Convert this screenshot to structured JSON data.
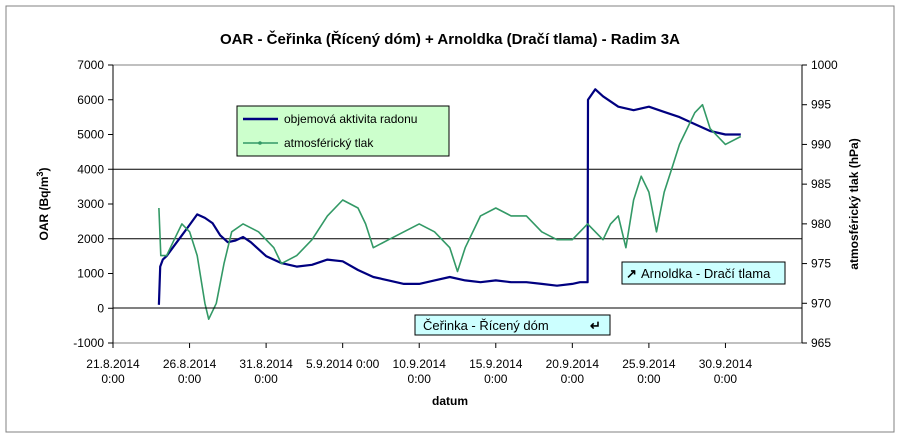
{
  "chart_data": {
    "type": "line",
    "title": "OAR - Čeřinka (Řícený dóm) + Arnoldka (Dračí tlama) - Radim 3A",
    "xlabel": "datum",
    "ylabel_left": "OAR (Bq/m",
    "ylabel_left_sup": "3",
    "ylabel_left_end": ")",
    "ylabel_right": "atmosférický tlak (hPa)",
    "ylim_left": [
      -1000,
      7000
    ],
    "ylim_right": [
      965,
      1000
    ],
    "yticks_left": [
      "-1000",
      "0",
      "1000",
      "2000",
      "3000",
      "4000",
      "5000",
      "6000",
      "7000"
    ],
    "yticks_right": [
      "965",
      "970",
      "975",
      "980",
      "985",
      "990",
      "995",
      "1000"
    ],
    "xlim": [
      "2014-08-21",
      "2014-10-05"
    ],
    "xticks": [
      {
        "date": "2014-08-21",
        "line1": "21.8.2014",
        "line2": "0:00"
      },
      {
        "date": "2014-08-26",
        "line1": "26.8.2014",
        "line2": "0:00"
      },
      {
        "date": "2014-08-31",
        "line1": "31.8.2014",
        "line2": "0:00"
      },
      {
        "date": "2014-09-05",
        "line1": "5.9.2014 0:00",
        "line2": ""
      },
      {
        "date": "2014-09-10",
        "line1": "10.9.2014",
        "line2": "0:00"
      },
      {
        "date": "2014-09-15",
        "line1": "15.9.2014",
        "line2": "0:00"
      },
      {
        "date": "2014-09-20",
        "line1": "20.9.2014",
        "line2": "0:00"
      },
      {
        "date": "2014-09-25",
        "line1": "25.9.2014",
        "line2": "0:00"
      },
      {
        "date": "2014-09-30",
        "line1": "30.9.2014",
        "line2": "0:00"
      }
    ],
    "gridlines_left": [
      2000,
      4000
    ],
    "legend_position": "upper-left",
    "series": [
      {
        "name": "objemová aktivita radonu",
        "color": "#000080",
        "axis": "left",
        "points": [
          [
            "2014-08-24T00:00",
            100
          ],
          [
            "2014-08-24T02:00",
            1200
          ],
          [
            "2014-08-24T06:00",
            1400
          ],
          [
            "2014-08-24T12:00",
            1500
          ],
          [
            "2014-08-25T00:00",
            1800
          ],
          [
            "2014-08-25T12:00",
            2100
          ],
          [
            "2014-08-26T00:00",
            2400
          ],
          [
            "2014-08-26T12:00",
            2700
          ],
          [
            "2014-08-27T00:00",
            2600
          ],
          [
            "2014-08-27T12:00",
            2450
          ],
          [
            "2014-08-28T00:00",
            2100
          ],
          [
            "2014-08-28T12:00",
            1900
          ],
          [
            "2014-08-29T00:00",
            1950
          ],
          [
            "2014-08-29T12:00",
            2050
          ],
          [
            "2014-08-30T00:00",
            1900
          ],
          [
            "2014-08-30T12:00",
            1700
          ],
          [
            "2014-08-31T00:00",
            1500
          ],
          [
            "2014-09-01T00:00",
            1300
          ],
          [
            "2014-09-02T00:00",
            1200
          ],
          [
            "2014-09-03T00:00",
            1250
          ],
          [
            "2014-09-04T00:00",
            1400
          ],
          [
            "2014-09-05T00:00",
            1350
          ],
          [
            "2014-09-06T00:00",
            1100
          ],
          [
            "2014-09-07T00:00",
            900
          ],
          [
            "2014-09-08T00:00",
            800
          ],
          [
            "2014-09-09T00:00",
            700
          ],
          [
            "2014-09-10T00:00",
            700
          ],
          [
            "2014-09-11T00:00",
            800
          ],
          [
            "2014-09-12T00:00",
            900
          ],
          [
            "2014-09-13T00:00",
            800
          ],
          [
            "2014-09-14T00:00",
            750
          ],
          [
            "2014-09-15T00:00",
            800
          ],
          [
            "2014-09-16T00:00",
            750
          ],
          [
            "2014-09-17T00:00",
            750
          ],
          [
            "2014-09-18T00:00",
            700
          ],
          [
            "2014-09-19T00:00",
            650
          ],
          [
            "2014-09-20T00:00",
            700
          ],
          [
            "2014-09-20T12:00",
            750
          ],
          [
            "2014-09-21T00:00",
            750
          ],
          [
            "2014-09-21T00:30",
            6000
          ],
          [
            "2014-09-21T12:00",
            6300
          ],
          [
            "2014-09-22T00:00",
            6100
          ],
          [
            "2014-09-23T00:00",
            5800
          ],
          [
            "2014-09-24T00:00",
            5700
          ],
          [
            "2014-09-25T00:00",
            5800
          ],
          [
            "2014-09-26T00:00",
            5650
          ],
          [
            "2014-09-27T00:00",
            5500
          ],
          [
            "2014-09-28T00:00",
            5300
          ],
          [
            "2014-09-29T00:00",
            5100
          ],
          [
            "2014-09-30T00:00",
            5000
          ],
          [
            "2014-10-01T00:00",
            5000
          ]
        ]
      },
      {
        "name": "atmosférický tlak",
        "color": "#339966",
        "axis": "right",
        "points": [
          [
            "2014-08-24T00:00",
            982
          ],
          [
            "2014-08-24T03:00",
            976
          ],
          [
            "2014-08-24T12:00",
            976
          ],
          [
            "2014-08-25T00:00",
            978
          ],
          [
            "2014-08-25T12:00",
            980
          ],
          [
            "2014-08-26T00:00",
            979
          ],
          [
            "2014-08-26T12:00",
            976
          ],
          [
            "2014-08-27T00:00",
            970
          ],
          [
            "2014-08-27T06:00",
            968
          ],
          [
            "2014-08-27T18:00",
            970
          ],
          [
            "2014-08-28T06:00",
            975
          ],
          [
            "2014-08-28T18:00",
            979
          ],
          [
            "2014-08-29T12:00",
            980
          ],
          [
            "2014-08-30T12:00",
            979
          ],
          [
            "2014-08-31T12:00",
            977
          ],
          [
            "2014-09-01T00:00",
            975
          ],
          [
            "2014-09-02T00:00",
            976
          ],
          [
            "2014-09-03T00:00",
            978
          ],
          [
            "2014-09-04T00:00",
            981
          ],
          [
            "2014-09-05T00:00",
            983
          ],
          [
            "2014-09-06T00:00",
            982
          ],
          [
            "2014-09-06T12:00",
            980
          ],
          [
            "2014-09-07T00:00",
            977
          ],
          [
            "2014-09-08T00:00",
            978
          ],
          [
            "2014-09-09T00:00",
            979
          ],
          [
            "2014-09-10T00:00",
            980
          ],
          [
            "2014-09-11T00:00",
            979
          ],
          [
            "2014-09-12T00:00",
            977
          ],
          [
            "2014-09-12T12:00",
            974
          ],
          [
            "2014-09-13T00:00",
            977
          ],
          [
            "2014-09-14T00:00",
            981
          ],
          [
            "2014-09-15T00:00",
            982
          ],
          [
            "2014-09-16T00:00",
            981
          ],
          [
            "2014-09-17T00:00",
            981
          ],
          [
            "2014-09-18T00:00",
            979
          ],
          [
            "2014-09-19T00:00",
            978
          ],
          [
            "2014-09-20T00:00",
            978
          ],
          [
            "2014-09-21T00:00",
            980
          ],
          [
            "2014-09-22T00:00",
            978
          ],
          [
            "2014-09-22T12:00",
            980
          ],
          [
            "2014-09-23T00:00",
            981
          ],
          [
            "2014-09-23T12:00",
            977
          ],
          [
            "2014-09-24T00:00",
            983
          ],
          [
            "2014-09-24T12:00",
            986
          ],
          [
            "2014-09-25T00:00",
            984
          ],
          [
            "2014-09-25T12:00",
            979
          ],
          [
            "2014-09-26T00:00",
            984
          ],
          [
            "2014-09-26T12:00",
            987
          ],
          [
            "2014-09-27T00:00",
            990
          ],
          [
            "2014-09-28T00:00",
            994
          ],
          [
            "2014-09-28T12:00",
            995
          ],
          [
            "2014-09-29T00:00",
            992
          ],
          [
            "2014-09-30T00:00",
            990
          ],
          [
            "2014-10-01T00:00",
            991
          ]
        ]
      }
    ],
    "annotations": [
      {
        "text": "Čeřinka - Řícený dóm",
        "glyph": "↵",
        "x_anchor": "2014-09-10"
      },
      {
        "text": "Arnoldka - Dračí tlama",
        "glyph": "↗",
        "x_anchor": "2014-09-21"
      }
    ]
  }
}
